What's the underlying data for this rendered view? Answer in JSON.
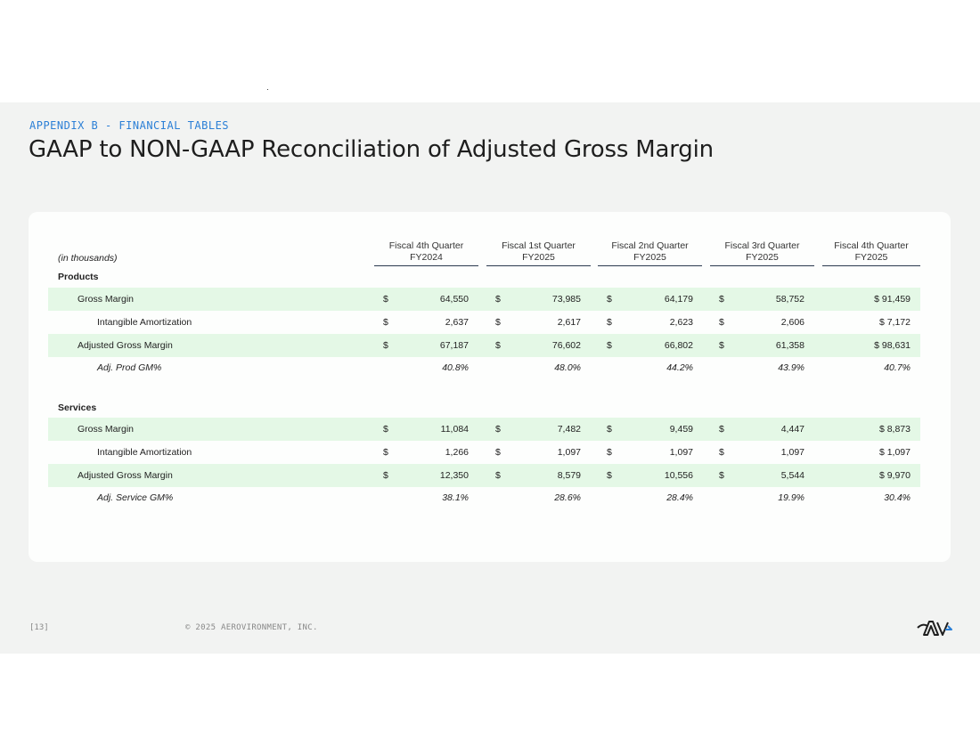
{
  "header": {
    "eyebrow": "APPENDIX B - FINANCIAL TABLES",
    "title": "GAAP to NON-GAAP Reconciliation of Adjusted Gross Margin"
  },
  "table": {
    "units_label": "(in thousands)",
    "columns": [
      {
        "line1": "Fiscal 4th Quarter",
        "line2": "FY2024"
      },
      {
        "line1": "Fiscal 1st Quarter",
        "line2": "FY2025"
      },
      {
        "line1": "Fiscal 2nd Quarter",
        "line2": "FY2025"
      },
      {
        "line1": "Fiscal 3rd Quarter",
        "line2": "FY2025"
      },
      {
        "line1": "Fiscal 4th Quarter",
        "line2": "FY2025"
      }
    ],
    "products": {
      "section_label": "Products",
      "gross_margin": {
        "label": "Gross Margin",
        "values": [
          "64,550",
          "73,985",
          "64,179",
          "58,752",
          "$ 91,459"
        ]
      },
      "intangible_amortization": {
        "label": "Intangible Amortization",
        "values": [
          "2,637",
          "2,617",
          "2,623",
          "2,606",
          "$ 7,172"
        ]
      },
      "adjusted_gross_margin": {
        "label": "Adjusted Gross Margin",
        "values": [
          "67,187",
          "76,602",
          "66,802",
          "61,358",
          "$ 98,631"
        ]
      },
      "adj_gm_pct": {
        "label": "Adj. Prod GM%",
        "values": [
          "40.8%",
          "48.0%",
          "44.2%",
          "43.9%",
          "40.7%"
        ]
      }
    },
    "services": {
      "section_label": "Services",
      "gross_margin": {
        "label": "Gross Margin",
        "values": [
          "11,084",
          "7,482",
          "9,459",
          "4,447",
          "$ 8,873"
        ]
      },
      "intangible_amortization": {
        "label": "Intangible Amortization",
        "values": [
          "1,266",
          "1,097",
          "1,097",
          "1,097",
          "$ 1,097"
        ]
      },
      "adjusted_gross_margin": {
        "label": "Adjusted Gross Margin",
        "values": [
          "12,350",
          "8,579",
          "10,556",
          "5,544",
          "$ 9,970"
        ]
      },
      "adj_gm_pct": {
        "label": "Adj. Service GM%",
        "values": [
          "38.1%",
          "28.6%",
          "28.4%",
          "19.9%",
          "30.4%"
        ]
      }
    },
    "currency_symbol": "$"
  },
  "footer": {
    "page_number": "[13]",
    "copyright": "© 2025 AEROVIRONMENT, INC.",
    "logo_text": "AV"
  },
  "colors": {
    "accent": "#2b7fd6",
    "row_shade": "#e4f8e6",
    "rule": "#2a3a4f"
  }
}
